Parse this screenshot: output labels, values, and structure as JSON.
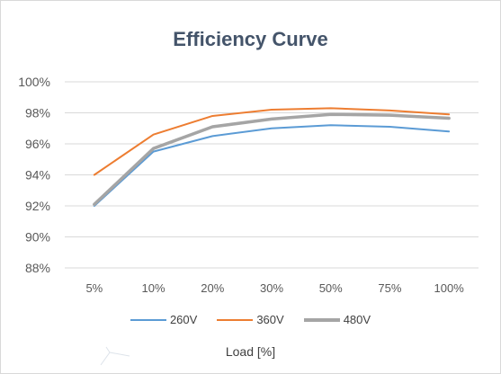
{
  "chart_data": {
    "type": "line",
    "title": "Efficiency Curve",
    "xlabel": "Load [%]",
    "ylabel": "",
    "categories": [
      "5%",
      "10%",
      "20%",
      "30%",
      "50%",
      "75%",
      "100%"
    ],
    "ylim": [
      88,
      100
    ],
    "yticks": [
      88,
      90,
      92,
      94,
      96,
      98,
      100
    ],
    "ytick_labels": [
      "88%",
      "90%",
      "92%",
      "94%",
      "96%",
      "98%",
      "100%"
    ],
    "grid": true,
    "legend_position": "bottom",
    "series": [
      {
        "name": "260V",
        "color": "#5b9bd5",
        "values": [
          92.0,
          95.5,
          96.5,
          97.0,
          97.2,
          97.1,
          96.8
        ]
      },
      {
        "name": "360V",
        "color": "#ed7d31",
        "values": [
          94.0,
          96.6,
          97.8,
          98.2,
          98.3,
          98.15,
          97.9
        ]
      },
      {
        "name": "480V",
        "color": "#a5a5a5",
        "values": [
          92.1,
          95.7,
          97.1,
          97.6,
          97.9,
          97.85,
          97.65
        ]
      }
    ]
  }
}
